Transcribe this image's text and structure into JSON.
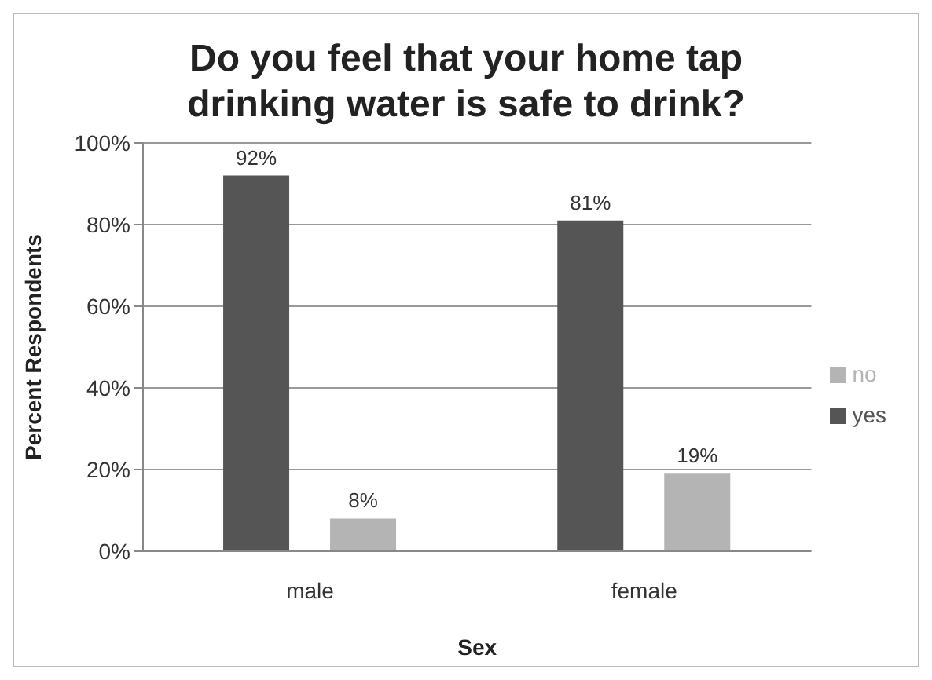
{
  "chart_data": {
    "type": "bar",
    "title": "Do you feel that your home tap drinking water is safe to drink?",
    "xlabel": "Sex",
    "ylabel": "Percent Respondents",
    "categories": [
      "male",
      "female"
    ],
    "series": [
      {
        "name": "yes",
        "color": "#555555",
        "values": [
          92,
          81
        ],
        "value_labels": [
          "92%",
          "81%"
        ]
      },
      {
        "name": "no",
        "color": "#b4b4b4",
        "values": [
          8,
          19
        ],
        "value_labels": [
          "8%",
          "19%"
        ]
      }
    ],
    "ylim": [
      0,
      100
    ],
    "yticks": [
      {
        "value": 0,
        "label": "0%"
      },
      {
        "value": 20,
        "label": "20%"
      },
      {
        "value": 40,
        "label": "40%"
      },
      {
        "value": 60,
        "label": "60%"
      },
      {
        "value": 80,
        "label": "80%"
      },
      {
        "value": 100,
        "label": "100%"
      }
    ],
    "grid": "y",
    "legend": "right"
  }
}
